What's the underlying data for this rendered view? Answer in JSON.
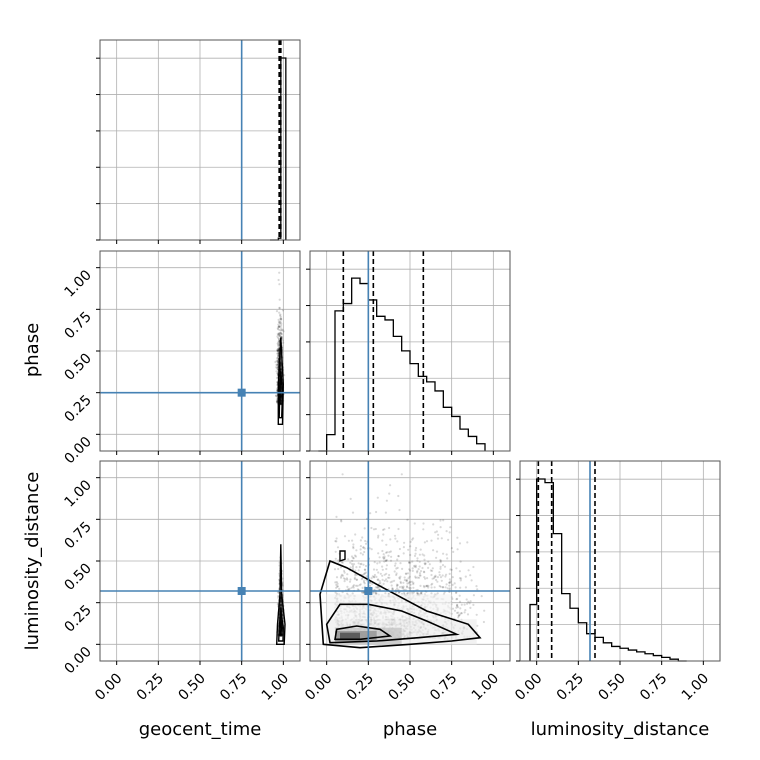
{
  "chart_data": {
    "type": "corner",
    "parameters": [
      "geocent_time",
      "phase",
      "luminosity_distance"
    ],
    "truths": {
      "geocent_time": 0.75,
      "phase": 0.25,
      "luminosity_distance": 0.32
    },
    "truth_color": "#4682b4",
    "tick_labels": [
      "0.00",
      "0.25",
      "0.50",
      "0.75",
      "1.00"
    ],
    "xlim": [
      -0.1,
      1.1
    ],
    "grid": true,
    "diagonal": {
      "geocent_time": {
        "bin_edges": [
          0.92,
          0.97,
          0.985,
          1.0,
          1.015
        ],
        "counts": [
          0.0,
          0.01,
          1.0,
          1.0
        ],
        "quantiles": [
          0.975,
          0.98,
          0.985
        ]
      },
      "phase": {
        "bin_edges": [
          -0.05,
          0.0,
          0.05,
          0.1,
          0.15,
          0.2,
          0.25,
          0.3,
          0.35,
          0.4,
          0.45,
          0.5,
          0.55,
          0.6,
          0.65,
          0.7,
          0.75,
          0.8,
          0.85,
          0.9,
          0.95
        ],
        "counts": [
          0.0,
          0.09,
          0.77,
          0.81,
          0.95,
          0.92,
          0.83,
          0.74,
          0.72,
          0.63,
          0.55,
          0.48,
          0.41,
          0.38,
          0.33,
          0.24,
          0.19,
          0.12,
          0.08,
          0.04
        ],
        "quantiles": [
          0.1,
          0.28,
          0.58
        ]
      },
      "luminosity_distance": {
        "bin_edges": [
          -0.04,
          0.0,
          0.05,
          0.1,
          0.15,
          0.2,
          0.25,
          0.3,
          0.35,
          0.4,
          0.45,
          0.5,
          0.55,
          0.6,
          0.65,
          0.7,
          0.75,
          0.8,
          0.85,
          0.9
        ],
        "counts": [
          0.31,
          1.0,
          0.98,
          0.7,
          0.37,
          0.29,
          0.21,
          0.15,
          0.13,
          0.1,
          0.08,
          0.07,
          0.06,
          0.05,
          0.04,
          0.03,
          0.02,
          0.01,
          0.0
        ],
        "quantiles": [
          0.01,
          0.09,
          0.35
        ]
      }
    }
  }
}
